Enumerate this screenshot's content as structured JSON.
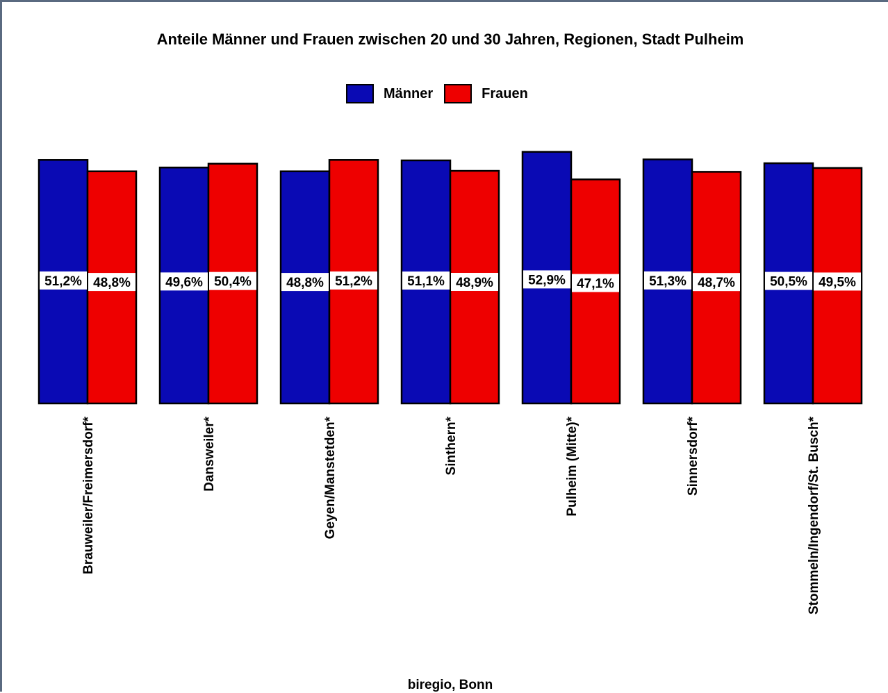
{
  "chart_data": {
    "type": "bar",
    "title": "Anteile Männer und Frauen zwischen 20 und 30 Jahren, Regionen, Stadt Pulheim",
    "categories": [
      "Brauweiler/Freimersdorf*",
      "Dansweiler*",
      "Geyen/Manstetden*",
      "Sinthern*",
      "Pulheim (Mitte)*",
      "Sinnersdorf*",
      "Stommeln/Ingendorf/St. Busch*"
    ],
    "series": [
      {
        "name": "Männer",
        "color": "#0a0ab4",
        "values": [
          51.2,
          49.6,
          48.8,
          51.1,
          52.9,
          51.3,
          50.5
        ],
        "labels": [
          "51,2%",
          "49,6%",
          "48,8%",
          "51,1%",
          "52,9%",
          "51,3%",
          "50,5%"
        ]
      },
      {
        "name": "Frauen",
        "color": "#ee0000",
        "values": [
          48.8,
          50.4,
          51.2,
          48.9,
          47.1,
          48.7,
          49.5
        ],
        "labels": [
          "48,8%",
          "50,4%",
          "51,2%",
          "48,9%",
          "47,1%",
          "48,7%",
          "49,5%"
        ]
      }
    ],
    "ylabel": "",
    "xlabel": "",
    "grid": false,
    "legend_position": "top-center"
  },
  "footer": {
    "source": "biregio, Bonn"
  }
}
